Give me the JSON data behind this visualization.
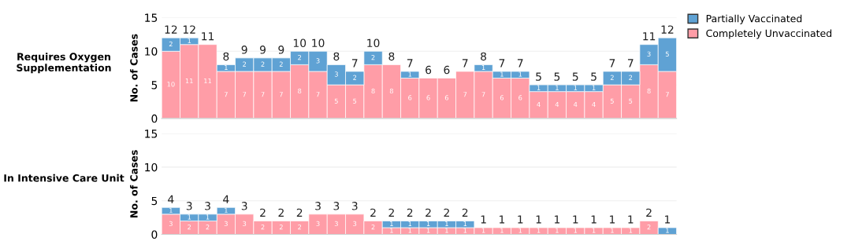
{
  "chart_data": [
    {
      "type": "bar",
      "title": "Requires Oxygen Supplementation",
      "ylabel": "No. of Cases",
      "stacked": true,
      "categories": [
        null,
        null,
        null,
        null,
        null,
        null,
        null,
        null,
        null,
        null,
        null,
        null,
        null,
        null,
        null,
        null,
        null,
        null,
        null,
        null,
        null,
        null,
        null,
        null,
        null,
        null,
        null,
        null
      ],
      "series": [
        {
          "name": "Completely Unvaccinated",
          "color": "#ff9da7",
          "values": [
            10,
            11,
            11,
            7,
            7,
            7,
            7,
            8,
            7,
            5,
            5,
            8,
            8,
            6,
            6,
            6,
            7,
            7,
            6,
            6,
            4,
            4,
            4,
            4,
            5,
            5,
            8,
            7
          ],
          "value_labels": [
            "10",
            "11",
            "11",
            "7",
            "7",
            "7",
            "7",
            "8",
            "7",
            "5",
            "5",
            "8",
            "8",
            "6",
            "6",
            "6",
            "7",
            "7",
            "6",
            "6",
            "4",
            "4",
            "4",
            "4",
            "5",
            "5",
            "8",
            "7"
          ]
        },
        {
          "name": "Partially Vaccinated",
          "color": "#5fa2d4",
          "values": [
            2,
            1,
            0,
            1,
            2,
            2,
            2,
            2,
            3,
            3,
            2,
            2,
            0,
            1,
            0,
            0,
            0,
            1,
            1,
            1,
            1,
            1,
            1,
            1,
            2,
            2,
            3,
            5
          ],
          "value_labels": [
            "2",
            "1",
            null,
            "1",
            "2",
            "2",
            "2",
            "2",
            "3",
            "3",
            "2",
            "2",
            null,
            "1",
            null,
            null,
            null,
            "1",
            "1",
            "1",
            "1",
            "1",
            "1",
            "1",
            "2",
            "2",
            "3",
            "5"
          ]
        }
      ],
      "totals": [
        "12",
        "12",
        "11",
        "8",
        "9",
        "9",
        "9",
        "10",
        "10",
        "8",
        "7",
        "10",
        "8",
        "7",
        "6",
        "6",
        "7",
        "8",
        "7",
        "7",
        "5",
        "5",
        "5",
        "5",
        "7",
        "7",
        "11",
        "12"
      ],
      "ylim": [
        0,
        15
      ],
      "yticks": [
        0,
        5,
        10,
        15
      ],
      "grid": "y",
      "legend": "top right",
      "tick_labels": "y"
    },
    {
      "type": "bar",
      "title": "In Intensive Care Unit",
      "ylabel": "No. of Cases",
      "stacked": true,
      "categories": [
        null,
        null,
        null,
        null,
        null,
        null,
        null,
        null,
        null,
        null,
        null,
        null,
        null,
        null,
        null,
        null,
        null,
        null,
        null,
        null,
        null,
        null,
        null,
        null,
        null,
        null,
        null,
        null
      ],
      "series": [
        {
          "color": "#ff9da7",
          "values": [
            3,
            2,
            2,
            3,
            3,
            2,
            2,
            2,
            3,
            3,
            3,
            2,
            1,
            1,
            1,
            1,
            1,
            1,
            1,
            1,
            1,
            1,
            1,
            1,
            1,
            1,
            2,
            0
          ],
          "value_labels": [
            "3",
            "2",
            "2",
            "3",
            "3",
            "2",
            "2",
            "2",
            "3",
            "3",
            "3",
            "2",
            "1",
            "1",
            "1",
            "1",
            "1",
            "1",
            "1",
            "1",
            "1",
            "1",
            "1",
            "1",
            "1",
            "1",
            "2",
            null
          ]
        },
        {
          "color": "#5fa2d4",
          "values": [
            1,
            1,
            1,
            1,
            0,
            0,
            0,
            0,
            0,
            0,
            0,
            0,
            1,
            1,
            1,
            1,
            1,
            0,
            0,
            0,
            0,
            0,
            0,
            0,
            0,
            0,
            0,
            1
          ],
          "value_labels": [
            "1",
            "1",
            "1",
            "1",
            null,
            null,
            null,
            null,
            null,
            null,
            null,
            null,
            "1",
            "1",
            "1",
            "1",
            "1",
            null,
            null,
            null,
            null,
            null,
            null,
            null,
            null,
            null,
            null,
            "1"
          ]
        }
      ],
      "totals": [
        "4",
        "3",
        "3",
        "4",
        "3",
        "2",
        "2",
        "2",
        "3",
        "3",
        "3",
        "2",
        "2",
        "2",
        "2",
        "2",
        "2",
        "1",
        "1",
        "1",
        "1",
        "1",
        "1",
        "1",
        "1",
        "1",
        "2",
        "1"
      ],
      "ylim": [
        0,
        15
      ],
      "yticks": [
        0,
        5,
        10,
        15
      ],
      "grid": "y",
      "legend": false,
      "tick_labels": "y"
    }
  ]
}
